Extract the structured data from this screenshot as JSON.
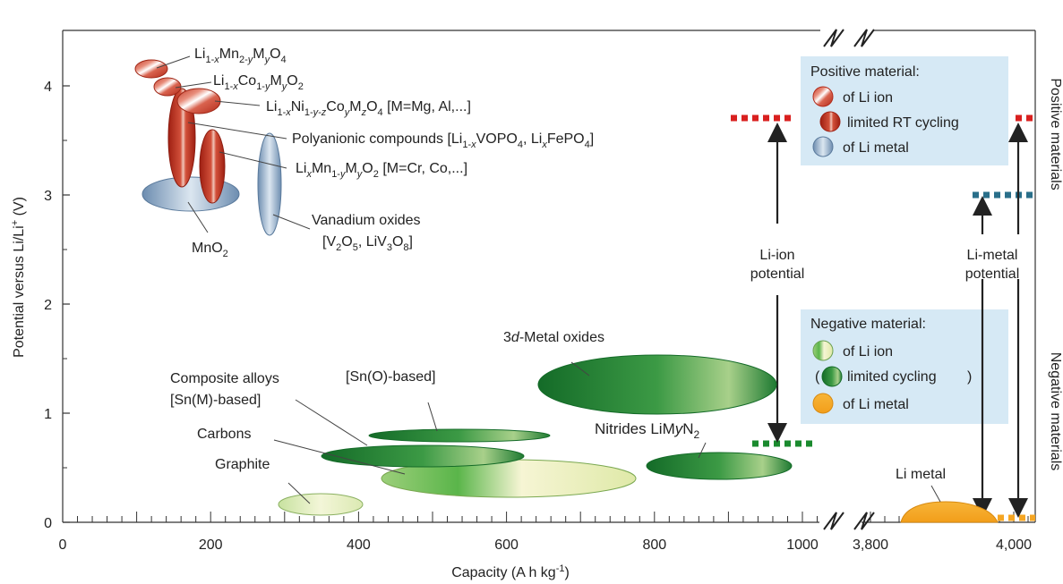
{
  "chart_data": {
    "type": "scatter",
    "xlabel": "Capacity  (A h kg",
    "xlabel_sup": "-1",
    "xlabel_end": ")",
    "ylabel": "Potential versus Li/Li",
    "ylabel_sup": "+",
    "ylabel_end": " (V)",
    "xlim_main": [
      0,
      1020
    ],
    "xlim_broken": [
      3750,
      4030
    ],
    "ylim": [
      0,
      4.5
    ],
    "x_ticks": [
      {
        "v": 0,
        "label": "0"
      },
      {
        "v": 200,
        "label": "200"
      },
      {
        "v": 400,
        "label": "400"
      },
      {
        "v": 600,
        "label": "600"
      },
      {
        "v": 800,
        "label": "800"
      },
      {
        "v": 1000,
        "label": "1000"
      }
    ],
    "x_ticks_broken": [
      {
        "v": 3800,
        "label": "3,800"
      },
      {
        "v": 4000,
        "label": "4,000"
      }
    ],
    "y_ticks": [
      {
        "v": 0,
        "label": "0"
      },
      {
        "v": 1,
        "label": "1"
      },
      {
        "v": 2,
        "label": "2"
      },
      {
        "v": 3,
        "label": "3"
      },
      {
        "v": 4,
        "label": "4"
      }
    ],
    "right_labels": {
      "top": "Positive materials",
      "bottom": "Negative materials"
    },
    "materials": [
      {
        "name": "Li1-xMn2-yMyO4",
        "x": 120,
        "y": 4.2,
        "kind": "positive"
      },
      {
        "name": "Li1-xCo1-yMyO2",
        "x": 145,
        "y": 4.0,
        "kind": "positive"
      },
      {
        "name": "Li1-xNi1-y-zCoyMzO4",
        "x": 185,
        "y": 3.9,
        "kind": "positive"
      },
      {
        "name": "Polyanionic compounds",
        "x": 160,
        "y": 3.5,
        "kind": "positive-limited"
      },
      {
        "name": "LixMn1-yMyO2",
        "x": 200,
        "y": 3.2,
        "kind": "positive-limited"
      },
      {
        "name": "MnO2",
        "x": 140,
        "y": 3.0,
        "kind": "li-metal"
      },
      {
        "name": "Vanadium oxides",
        "x": 280,
        "y": 3.0,
        "kind": "li-metal"
      },
      {
        "name": "3d-Metal oxides",
        "x": 810,
        "y": 1.25,
        "kind": "negative-limited"
      },
      {
        "name": "[Sn(O)-based]",
        "x": 555,
        "y": 0.8,
        "kind": "negative-limited"
      },
      {
        "name": "Composite alloys [Sn(M)-based]",
        "x": 485,
        "y": 0.6,
        "kind": "negative-limited"
      },
      {
        "name": "Nitrides LiMyN2",
        "x": 880,
        "y": 0.52,
        "kind": "negative-limited"
      },
      {
        "name": "Carbons",
        "x": 600,
        "y": 0.42,
        "kind": "negative"
      },
      {
        "name": "Graphite",
        "x": 355,
        "y": 0.17,
        "kind": "negative"
      },
      {
        "name": "Li metal",
        "x": 3880,
        "y": 0.05,
        "kind": "li-metal-anode"
      }
    ]
  },
  "labels": {
    "mn": {
      "main": "Li",
      "s1": "1-",
      "s1i": "x",
      "b": "Mn",
      "s2": "2-",
      "s2i": "y",
      "c": "M",
      "s3i": "y",
      "d": "O",
      "s4": "4"
    },
    "co": {
      "main": "Li",
      "s1": "1-",
      "s1i": "x",
      "b": "Co",
      "s2": "1-",
      "s2i": "y",
      "c": "M",
      "s3i": "y",
      "d": "O",
      "s4": "2"
    },
    "ni": {
      "main": "Li",
      "s1": "1-",
      "s1i": "x",
      "b": "Ni",
      "s2": "1-",
      "s2i": "y-z",
      "c": "Co",
      "s3i": "y",
      "d": "M",
      "s4i": "z",
      "e": "O",
      "s5": "4",
      "tail": " [M=Mg, Al,...]"
    },
    "poly": {
      "a": "Polyanionic compounds [Li",
      "s1": "1-",
      "s1i": "x",
      "b": "VOPO",
      "s2": "4",
      "c": ", Li",
      "s3i": "x",
      "d": "FePO",
      "s4": "4",
      "e": "]"
    },
    "limn": {
      "a": "Li",
      "s1i": "x",
      "b": "Mn",
      "s2": "1-",
      "s2i": "y",
      "c": "M",
      "s3i": "y",
      "d": "O",
      "s4": "2",
      "tail": "  [M=Cr, Co,...]"
    },
    "mno2": {
      "a": "MnO",
      "s1": "2"
    },
    "vox": {
      "line1": "Vanadium oxides",
      "a": "[V",
      "s1": "2",
      "b": "O",
      "s2": "5",
      "c": ", LiV",
      "s3": "3",
      "d": "O",
      "s4": "8",
      "e": "]"
    },
    "metal_oxides": {
      "a": "3",
      "ai": "d",
      "b": "-Metal oxides"
    },
    "sno": "[Sn(O)-based]",
    "composite": {
      "line1": "Composite alloys",
      "line2": "[Sn(M)-based]"
    },
    "carbons": "Carbons",
    "graphite": "Graphite",
    "nitrides": {
      "a": "Nitrides LiM",
      "ai": "y",
      "b": "N",
      "s1": "2"
    },
    "li_metal": "Li metal",
    "li_ion_potential": {
      "line1": "Li-ion",
      "line2": "potential"
    },
    "li_metal_potential": {
      "line1": "Li-metal",
      "line2": "potential"
    }
  },
  "legend_positive": {
    "title": "Positive material:",
    "items": [
      "of Li ion",
      "limited RT cycling",
      "of Li metal"
    ]
  },
  "legend_negative": {
    "title": "Negative material:",
    "items": [
      "of Li ion",
      "limited cycling",
      "of Li metal"
    ],
    "paren_open": "(",
    "paren_close": ")"
  },
  "colors": {
    "red": "#c0392b",
    "blue": "#7f9db8",
    "green_dark": "#1e7a32",
    "green_light": "#eef3c4",
    "orange": "#f5a623",
    "legend_bg": "#d6e9f5",
    "dash_red": "#d9201f",
    "dash_blue": "#2a6f8a",
    "dash_green": "#1a8a2e",
    "dash_orange": "#f5a623"
  }
}
